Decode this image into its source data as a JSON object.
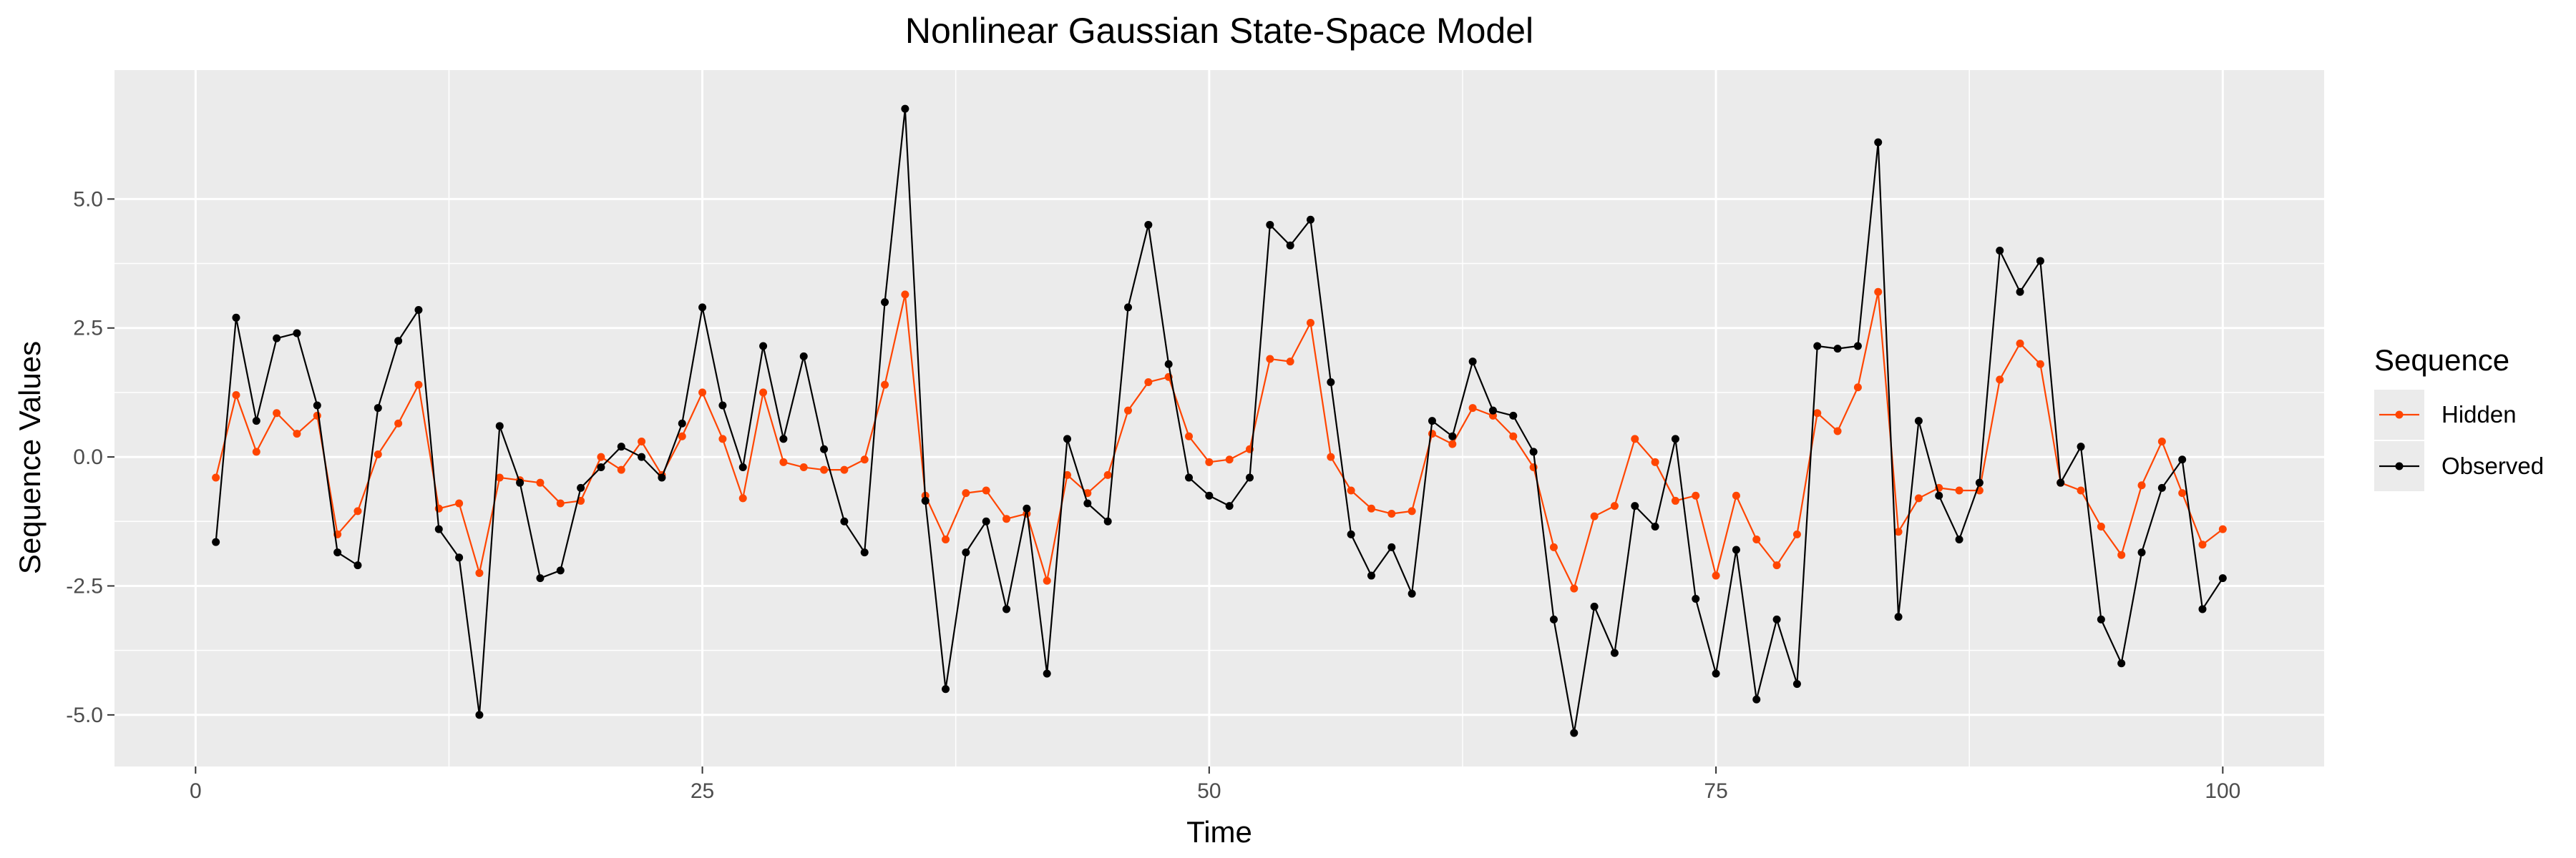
{
  "chart_data": {
    "type": "line",
    "title": "Nonlinear Gaussian State-Space Model",
    "xlabel": "Time",
    "ylabel": "Sequence Values",
    "xlim": [
      -4,
      105
    ],
    "ylim": [
      -6.0,
      7.5
    ],
    "x_ticks": [
      0,
      25,
      50,
      75,
      100
    ],
    "x_tick_labels": [
      "0",
      "25",
      "50",
      "75",
      "100"
    ],
    "y_ticks": [
      -5.0,
      -2.5,
      0.0,
      2.5,
      5.0
    ],
    "y_tick_labels": [
      "-5.0",
      "-2.5",
      "0.0",
      "2.5",
      "5.0"
    ],
    "grid": true,
    "legend_title": "Sequence",
    "legend_position": "right",
    "x": [
      1,
      2,
      3,
      4,
      5,
      6,
      7,
      8,
      9,
      10,
      11,
      12,
      13,
      14,
      15,
      16,
      17,
      18,
      19,
      20,
      21,
      22,
      23,
      24,
      25,
      26,
      27,
      28,
      29,
      30,
      31,
      32,
      33,
      34,
      35,
      36,
      37,
      38,
      39,
      40,
      41,
      42,
      43,
      44,
      45,
      46,
      47,
      48,
      49,
      50,
      51,
      52,
      53,
      54,
      55,
      56,
      57,
      58,
      59,
      60,
      61,
      62,
      63,
      64,
      65,
      66,
      67,
      68,
      69,
      70,
      71,
      72,
      73,
      74,
      75,
      76,
      77,
      78,
      79,
      80,
      81,
      82,
      83,
      84,
      85,
      86,
      87,
      88,
      89,
      90,
      91,
      92,
      93,
      94,
      95,
      96,
      97,
      98,
      99,
      100
    ],
    "series": [
      {
        "name": "Hidden",
        "color": "#ff4500",
        "values": [
          -0.4,
          1.2,
          0.1,
          0.85,
          0.45,
          0.8,
          -1.5,
          -1.05,
          0.05,
          0.65,
          1.4,
          -1.0,
          -0.9,
          -2.25,
          -0.4,
          -0.45,
          -0.5,
          -0.9,
          -0.85,
          0.0,
          -0.25,
          0.3,
          -0.35,
          0.4,
          1.25,
          0.35,
          -0.8,
          1.25,
          -0.1,
          -0.2,
          -0.25,
          -0.25,
          -0.05,
          1.4,
          3.15,
          -0.75,
          -1.6,
          -0.7,
          -0.65,
          -1.2,
          -1.1,
          -2.4,
          -0.35,
          -0.7,
          -0.35,
          0.9,
          1.45,
          1.55,
          0.4,
          -0.1,
          -0.05,
          0.15,
          1.9,
          1.85,
          2.6,
          0.0,
          -0.65,
          -1.0,
          -1.1,
          -1.05,
          0.45,
          0.25,
          0.95,
          0.8,
          0.4,
          -0.2,
          -1.75,
          -2.55,
          -1.15,
          -0.95,
          0.35,
          -0.1,
          -0.85,
          -0.75,
          -2.3,
          -0.75,
          -1.6,
          -2.1,
          -1.5,
          0.85,
          0.5,
          1.35,
          3.2,
          -1.45,
          -0.8,
          -0.6,
          -0.65,
          -0.65,
          1.5,
          2.2,
          1.8,
          -0.5,
          -0.65,
          -1.35,
          -1.9,
          -0.55,
          0.3,
          -0.7,
          -1.7,
          -1.4
        ]
      },
      {
        "name": "Observed",
        "color": "#000000",
        "values": [
          -1.65,
          2.7,
          0.7,
          2.3,
          2.4,
          1.0,
          -1.85,
          -2.1,
          0.95,
          2.25,
          2.85,
          -1.4,
          -1.95,
          -5.0,
          0.6,
          -0.5,
          -2.35,
          -2.2,
          -0.6,
          -0.2,
          0.2,
          0.0,
          -0.4,
          0.65,
          2.9,
          1.0,
          -0.2,
          2.15,
          0.35,
          1.95,
          0.15,
          -1.25,
          -1.85,
          3.0,
          6.75,
          -0.85,
          -4.5,
          -1.85,
          -1.25,
          -2.95,
          -1.0,
          -4.2,
          0.35,
          -0.9,
          -1.25,
          2.9,
          4.5,
          1.8,
          -0.4,
          -0.75,
          -0.95,
          -0.4,
          4.5,
          4.1,
          4.6,
          1.45,
          -1.5,
          -2.3,
          -1.75,
          -2.65,
          0.7,
          0.4,
          1.85,
          0.9,
          0.8,
          0.1,
          -3.15,
          -5.35,
          -2.9,
          -3.8,
          -0.95,
          -1.35,
          0.35,
          -2.75,
          -4.2,
          -1.8,
          -4.7,
          -3.15,
          -4.4,
          2.15,
          2.1,
          2.15,
          6.1,
          -3.1,
          0.7,
          -0.75,
          -1.6,
          -0.5,
          4.0,
          3.2,
          3.8,
          -0.5,
          0.2,
          -3.15,
          -4.0,
          -1.85,
          -0.6,
          -0.05,
          -2.95,
          -2.35
        ]
      }
    ]
  }
}
